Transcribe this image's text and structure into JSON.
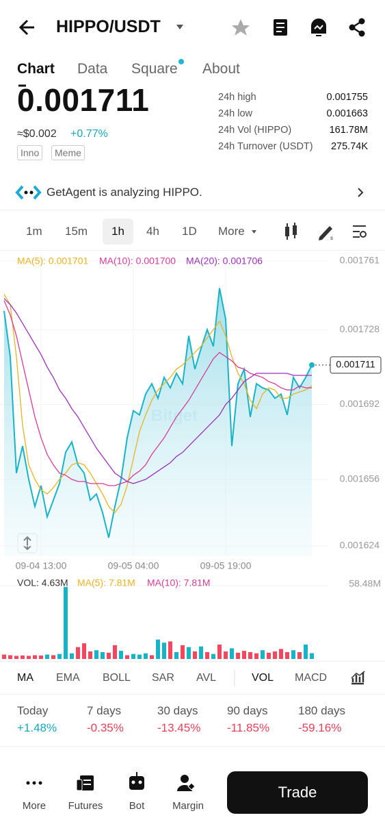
{
  "header": {
    "title": "HIPPO/USDT"
  },
  "tabs": [
    "Chart",
    "Data",
    "Square",
    "About"
  ],
  "ticker": {
    "price": "0.001711",
    "usd": "≈$0.002",
    "change": "+0.77%",
    "tags": [
      "Inno",
      "Meme"
    ],
    "stats": [
      [
        "24h high",
        "0.001755"
      ],
      [
        "24h low",
        "0.001663"
      ],
      [
        "24h Vol (HIPPO)",
        "161.78M"
      ],
      [
        "24h Turnover (USDT)",
        "275.74K"
      ]
    ]
  },
  "agent": "GetAgent is analyzing HIPPO.",
  "intervals": [
    "1m",
    "15m",
    "1h",
    "4h",
    "1D",
    "More"
  ],
  "chart_data": [
    {
      "type": "line",
      "watermark": "Bitget",
      "categories": [
        null,
        null,
        null,
        null,
        null,
        null,
        "09-04 13:00",
        null,
        null,
        null,
        null,
        null,
        null,
        null,
        null,
        null,
        null,
        null,
        null,
        null,
        null,
        "09-05 04:00",
        null,
        null,
        null,
        null,
        null,
        null,
        null,
        null,
        null,
        null,
        null,
        null,
        null,
        null,
        "09-05 19:00",
        null,
        null,
        null,
        null,
        null,
        null,
        null,
        null,
        null,
        null,
        null,
        null,
        null,
        null
      ],
      "series": [
        {
          "color": "#17b3c6",
          "area": true,
          "values": [
            0.001737,
            0.001715,
            0.001659,
            0.001672,
            0.001656,
            0.001643,
            0.001653,
            0.001638,
            0.001646,
            0.001654,
            0.001669,
            0.001674,
            0.001663,
            0.001659,
            0.001646,
            0.001649,
            0.00164,
            0.001628,
            0.001643,
            0.001656,
            0.001676,
            0.001689,
            0.001687,
            0.001697,
            0.001702,
            0.001695,
            0.001705,
            0.0017,
            0.001707,
            0.001702,
            0.001725,
            0.001709,
            0.001719,
            0.001728,
            0.00172,
            0.001748,
            0.001733,
            0.001672,
            0.001702,
            0.001709,
            0.001686,
            0.001702,
            0.0017,
            0.001699,
            0.001695,
            0.001697,
            0.001687,
            0.001705,
            0.0017,
            0.001705,
            0.001711
          ]
        },
        {
          "name": "MA(5): 0.001701",
          "color": "#e9b320",
          "values": [
            0.001745,
            0.00174,
            0.001715,
            0.001682,
            0.001663,
            0.001656,
            0.001651,
            0.001649,
            0.001652,
            0.001656,
            0.001659,
            0.001663,
            0.001664,
            0.001663,
            0.001659,
            0.001654,
            0.001649,
            0.001643,
            0.00164,
            0.001644,
            0.001653,
            0.001666,
            0.001679,
            0.001687,
            0.001694,
            0.001699,
            0.001702,
            0.001705,
            0.001709,
            0.001711,
            0.001714,
            0.001717,
            0.00172,
            0.001724,
            0.001728,
            0.001732,
            0.001725,
            0.001715,
            0.001707,
            0.001702,
            0.001694,
            0.00169,
            0.001697,
            0.0017,
            0.001699,
            0.001695,
            0.001695,
            0.001697,
            0.001698,
            0.001699,
            0.001701
          ]
        },
        {
          "name": "MA(10): 0.001700",
          "color": "#d63c9a",
          "values": [
            0.001742,
            0.001735,
            0.001725,
            0.001712,
            0.001699,
            0.001686,
            0.001676,
            0.001668,
            0.001663,
            0.001659,
            0.001658,
            0.001656,
            0.001655,
            0.001655,
            0.001654,
            0.001654,
            0.001654,
            0.001653,
            0.001653,
            0.001654,
            0.001655,
            0.001658,
            0.00166,
            0.001663,
            0.001668,
            0.001672,
            0.001676,
            0.001681,
            0.001686,
            0.00169,
            0.001694,
            0.001699,
            0.001704,
            0.001709,
            0.001714,
            0.001717,
            0.001715,
            0.001713,
            0.00171,
            0.001709,
            0.001707,
            0.001706,
            0.001705,
            0.001703,
            0.001702,
            0.0017,
            0.001699,
            0.001699,
            0.001701,
            0.0017,
            0.0017
          ]
        },
        {
          "name": "MA(20): 0.001706",
          "color": "#9b30b8",
          "values": [
            0.001743,
            0.00174,
            0.001736,
            0.001731,
            0.001726,
            0.001721,
            0.001716,
            0.00171,
            0.001705,
            0.001699,
            0.001695,
            0.00169,
            0.001686,
            0.001681,
            0.001676,
            0.001671,
            0.001667,
            0.001663,
            0.001659,
            0.001657,
            0.001655,
            0.001654,
            0.001655,
            0.001656,
            0.001658,
            0.00166,
            0.001662,
            0.001664,
            0.001667,
            0.001669,
            0.001672,
            0.001675,
            0.001678,
            0.001681,
            0.001684,
            0.001687,
            0.001692,
            0.001695,
            0.001699,
            0.001703,
            0.001705,
            0.001707,
            0.001707,
            0.001707,
            0.001707,
            0.001707,
            0.001707,
            0.001706,
            0.001706,
            0.001706,
            0.001706
          ]
        }
      ],
      "ylim": [
        0.001624,
        0.001761
      ],
      "yticks": [
        0.001761,
        0.001728,
        0.001692,
        0.001656,
        0.001624
      ],
      "grid": true
    },
    {
      "type": "bar",
      "legend": [
        {
          "name": "VOL: 4.63M",
          "color": "#333333"
        },
        {
          "name": "MA(5): 7.81M",
          "color": "#e9b320"
        },
        {
          "name": "MA(10): 7.81M",
          "color": "#d63c9a"
        }
      ],
      "values": [
        3.5,
        3.0,
        2.5,
        2.8,
        2.5,
        3.0,
        2.8,
        3.5,
        3.0,
        4.0,
        57.5,
        4.5,
        9.5,
        12.5,
        6.0,
        7.0,
        5.5,
        5.0,
        11.0,
        6.5,
        3.0,
        4.0,
        3.5,
        4.5,
        3.0,
        15.5,
        13.0,
        14.0,
        5.5,
        11.0,
        9.5,
        6.0,
        10.0,
        5.5,
        4.0,
        11.5,
        6.0,
        8.5,
        5.0,
        6.5,
        5.5,
        4.5,
        7.0,
        5.0,
        6.0,
        8.0,
        5.5,
        7.0,
        5.5,
        11.5,
        4.63
      ],
      "colors": [
        "#f2475e",
        "#f2475e",
        "#f2475e",
        "#f2475e",
        "#f2475e",
        "#f2475e",
        "#f2475e",
        "#16b4c8",
        "#f2475e",
        "#16b4c8",
        "#16b4c8",
        "#16b4c8",
        "#f2475e",
        "#f2475e",
        "#f2475e",
        "#16b4c8",
        "#16b4c8",
        "#f2475e",
        "#f2475e",
        "#16b4c8",
        "#f2475e",
        "#16b4c8",
        "#16b4c8",
        "#16b4c8",
        "#f2475e",
        "#16b4c8",
        "#16b4c8",
        "#f2475e",
        "#16b4c8",
        "#f2475e",
        "#16b4c8",
        "#f2475e",
        "#16b4c8",
        "#f2475e",
        "#16b4c8",
        "#f2475e",
        "#f2475e",
        "#16b4c8",
        "#f2475e",
        "#f2475e",
        "#f2475e",
        "#f2475e",
        "#16b4c8",
        "#f2475e",
        "#f2475e",
        "#f2475e",
        "#f2475e",
        "#16b4c8",
        "#f2475e",
        "#16b4c8",
        "#16b4c8"
      ],
      "ylim": [
        0,
        58.48
      ],
      "yticks": [
        {
          "value": 58.48,
          "label": "58.48M"
        }
      ]
    }
  ],
  "indicators": [
    "MA",
    "EMA",
    "BOLL",
    "SAR",
    "AVL",
    "VOL",
    "MACD"
  ],
  "performance": [
    [
      "Today",
      "+1.48%"
    ],
    [
      "7 days",
      "-0.35%"
    ],
    [
      "30 days",
      "-13.45%"
    ],
    [
      "90 days",
      "-11.85%"
    ],
    [
      "180 days",
      "-59.16%"
    ]
  ],
  "nav": [
    "More",
    "Futures",
    "Bot",
    "Margin"
  ],
  "trade": "Trade"
}
